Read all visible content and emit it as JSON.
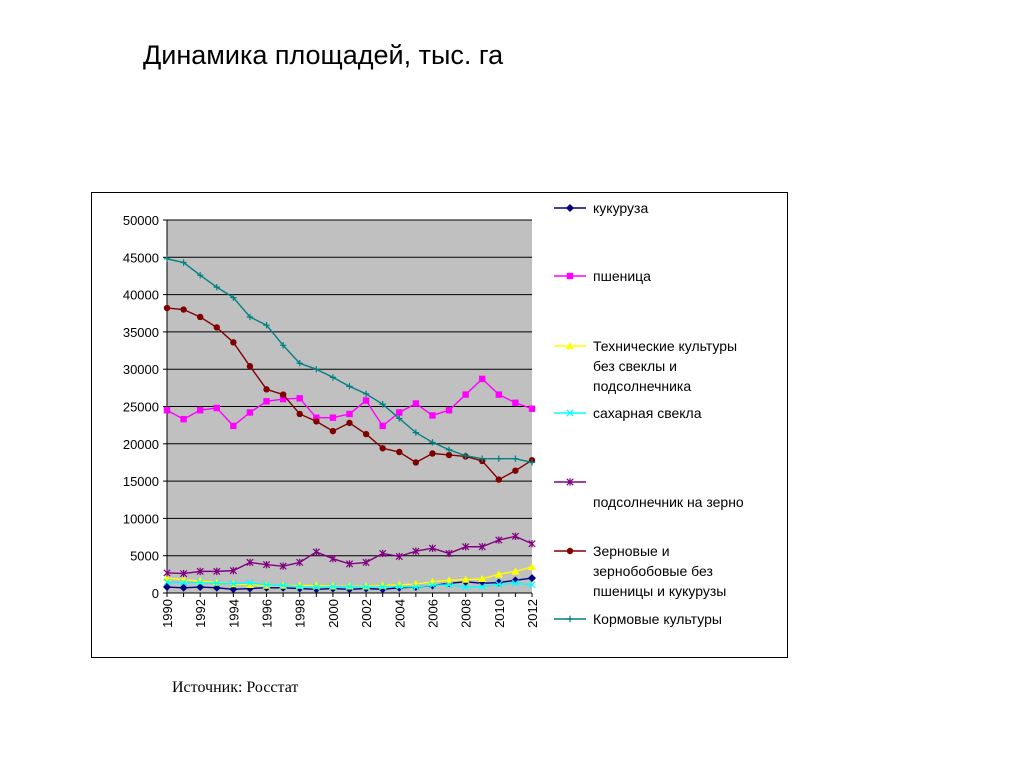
{
  "slide": {
    "title": "Динамика площадей, тыс. га",
    "source": "Источник: Росстат"
  },
  "chart_data": {
    "type": "line",
    "title": "",
    "xlabel": "",
    "ylabel": "",
    "ylim": [
      0,
      50000
    ],
    "yticks": [
      0,
      5000,
      10000,
      15000,
      20000,
      25000,
      30000,
      35000,
      40000,
      45000,
      50000
    ],
    "x": [
      1990,
      1991,
      1992,
      1993,
      1994,
      1995,
      1996,
      1997,
      1998,
      1999,
      2000,
      2001,
      2002,
      2003,
      2004,
      2005,
      2006,
      2007,
      2008,
      2009,
      2010,
      2011,
      2012
    ],
    "xtick_labels": [
      "1990",
      "1992",
      "1994",
      "1996",
      "1998",
      "2000",
      "2002",
      "2004",
      "2006",
      "2008",
      "2010",
      "2012"
    ],
    "plot_background": "#c0c0c0",
    "grid": true,
    "legend_position": "right",
    "series": [
      {
        "name": "кукуруза",
        "color": "#000080",
        "marker": "diamond",
        "values": [
          800,
          700,
          800,
          700,
          500,
          600,
          700,
          700,
          600,
          500,
          600,
          500,
          600,
          500,
          700,
          800,
          1000,
          1300,
          1500,
          1300,
          1400,
          1700,
          2000
        ]
      },
      {
        "name": "пшеница",
        "color": "#ff00ff",
        "marker": "square",
        "values": [
          24500,
          23300,
          24500,
          24800,
          22400,
          24200,
          25700,
          26000,
          26100,
          23500,
          23500,
          24000,
          25800,
          22400,
          24200,
          25400,
          23800,
          24500,
          26600,
          28700,
          26600,
          25500,
          24700
        ]
      },
      {
        "name_lines": [
          "Технические культуры",
          "без свеклы и",
          "подсолнечника"
        ],
        "color": "#ffff00",
        "marker": "triangle",
        "values": [
          2000,
          1800,
          1600,
          1400,
          1200,
          1100,
          1000,
          1000,
          1000,
          1000,
          900,
          900,
          900,
          1000,
          1100,
          1200,
          1500,
          1700,
          1800,
          1900,
          2500,
          2900,
          3500
        ]
      },
      {
        "name": "сахарная свекла",
        "color": "#00ffff",
        "marker": "x",
        "values": [
          1450,
          1400,
          1400,
          1300,
          1250,
          1350,
          1100,
          1000,
          850,
          800,
          850,
          850,
          800,
          850,
          850,
          800,
          1050,
          1100,
          800,
          850,
          1150,
          1300,
          1100
        ]
      },
      {
        "name": "подсолнечник на зерно",
        "color": "#800080",
        "marker": "star",
        "values": [
          2700,
          2600,
          2900,
          2900,
          3000,
          4100,
          3800,
          3600,
          4100,
          5500,
          4600,
          3900,
          4100,
          5300,
          4900,
          5600,
          6000,
          5300,
          6200,
          6200,
          7100,
          7600,
          6600
        ]
      },
      {
        "name_lines": [
          "Зерновые и",
          "зернобобовые  без",
          "пшеницы и кукурузы"
        ],
        "color": "#800000",
        "marker": "circle",
        "values": [
          38200,
          38000,
          37000,
          35600,
          33600,
          30400,
          27300,
          26600,
          24000,
          23000,
          21700,
          22800,
          21300,
          19400,
          18900,
          17500,
          18700,
          18500,
          18300,
          17700,
          15200,
          16400,
          17800
        ]
      },
      {
        "name": "Кормовые культуры",
        "color": "#008080",
        "marker": "plus",
        "values": [
          44800,
          44300,
          42600,
          41000,
          39600,
          37000,
          35900,
          33200,
          30800,
          30000,
          28900,
          27700,
          26700,
          25300,
          23400,
          21500,
          20200,
          19200,
          18400,
          18000,
          18000,
          18000,
          17500
        ]
      }
    ]
  }
}
